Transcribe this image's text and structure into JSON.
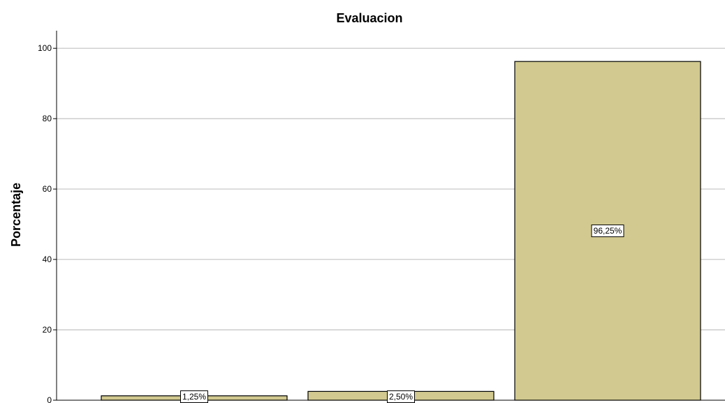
{
  "chart_data": {
    "type": "bar",
    "title": "Evaluacion",
    "xlabel": "",
    "ylabel": "Porcentaje",
    "categories": [
      "",
      "",
      ""
    ],
    "values": [
      1.25,
      2.5,
      96.25
    ],
    "data_labels": [
      "1,25%",
      "2,50%",
      "96,25%"
    ],
    "ylim": [
      0,
      105
    ],
    "yticks": [
      0,
      20,
      40,
      60,
      80,
      100
    ],
    "ytick_labels": [
      "0",
      "20",
      "40",
      "60",
      "80",
      "100"
    ],
    "grid": true,
    "bar_color": "#d1c98f",
    "bar_edge_color": "#000000",
    "grid_color": "#c8c8c8"
  }
}
